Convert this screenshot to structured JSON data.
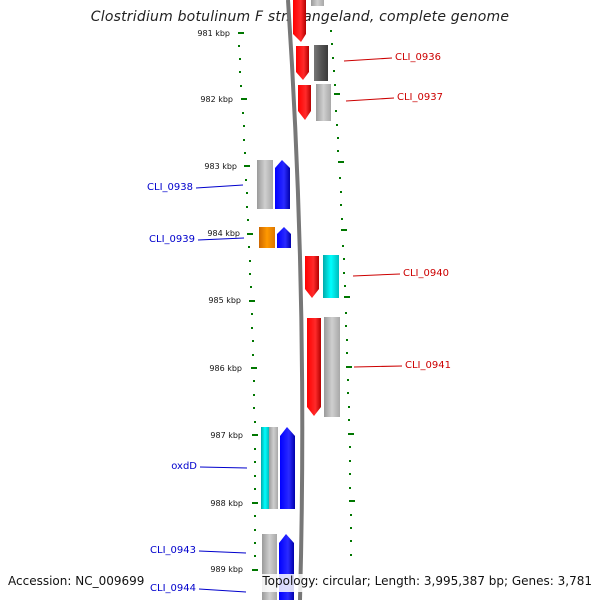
{
  "title": "Clostridium botulinum F str. Langeland, complete genome",
  "footer": {
    "accession": "Accession: NC_009699",
    "topology": "Topology: circular; Length: 3,995,387 bp; Genes: 3,781"
  },
  "ruler": [
    "981 kbp",
    "982 kbp",
    "983 kbp",
    "984 kbp",
    "985 kbp",
    "986 kbp",
    "987 kbp",
    "988 kbp",
    "989 kbp"
  ],
  "genes": [
    {
      "label": "CLI_0936",
      "color": "#cc0000"
    },
    {
      "label": "CLI_0937",
      "color": "#cc0000"
    },
    {
      "label": "CLI_0938",
      "color": "#0000cc"
    },
    {
      "label": "CLI_0939",
      "color": "#0000cc"
    },
    {
      "label": "CLI_0940",
      "color": "#cc0000"
    },
    {
      "label": "CLI_0941",
      "color": "#cc0000"
    },
    {
      "label": "oxdD",
      "color": "#0000cc"
    },
    {
      "label": "CLI_0943",
      "color": "#0000cc"
    },
    {
      "label": "CLI_0944",
      "color": "#0000cc"
    }
  ],
  "colors": {
    "forward_strand": "#ff0000",
    "reverse_strand": "#0000ff",
    "gc_high": "#555555",
    "gc_low": "#bbbbbb",
    "cyan_feature": "#00dddd",
    "orange_feature": "#ff8800",
    "backbone": "#777777",
    "ticks": "#007700"
  }
}
